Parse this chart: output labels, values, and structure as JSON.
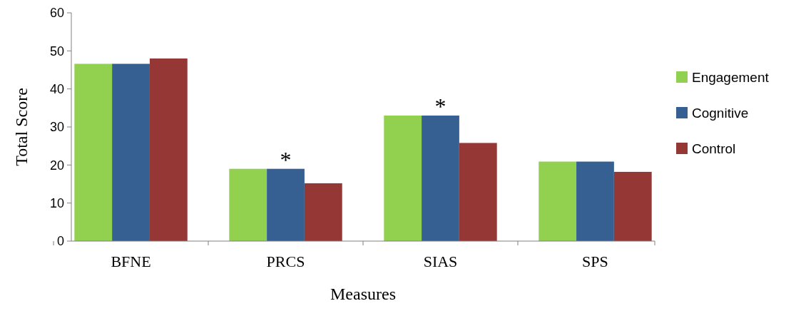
{
  "chart_data": {
    "type": "bar",
    "xlabel": "Measures",
    "ylabel": "Total Score",
    "categories": [
      "BFNE",
      "PRCS",
      "SIAS",
      "SPS"
    ],
    "series": [
      {
        "name": "Engagement",
        "color": "#92d050",
        "values": [
          46.6,
          19.0,
          33.0,
          20.9
        ]
      },
      {
        "name": "Cognitive",
        "color": "#366092",
        "values": [
          46.6,
          19.0,
          33.0,
          20.9
        ]
      },
      {
        "name": "Control",
        "color": "#953735",
        "values": [
          48.0,
          15.2,
          25.8,
          18.2
        ]
      }
    ],
    "ylim": [
      0,
      60
    ],
    "yticks": [
      0,
      10,
      20,
      30,
      40,
      50,
      60
    ],
    "grid": false,
    "legend": "right",
    "annotations": [
      {
        "text": "*",
        "x": "PRCS",
        "y": 19.0
      },
      {
        "text": "*",
        "x": "SIAS",
        "y": 33.0
      }
    ]
  }
}
